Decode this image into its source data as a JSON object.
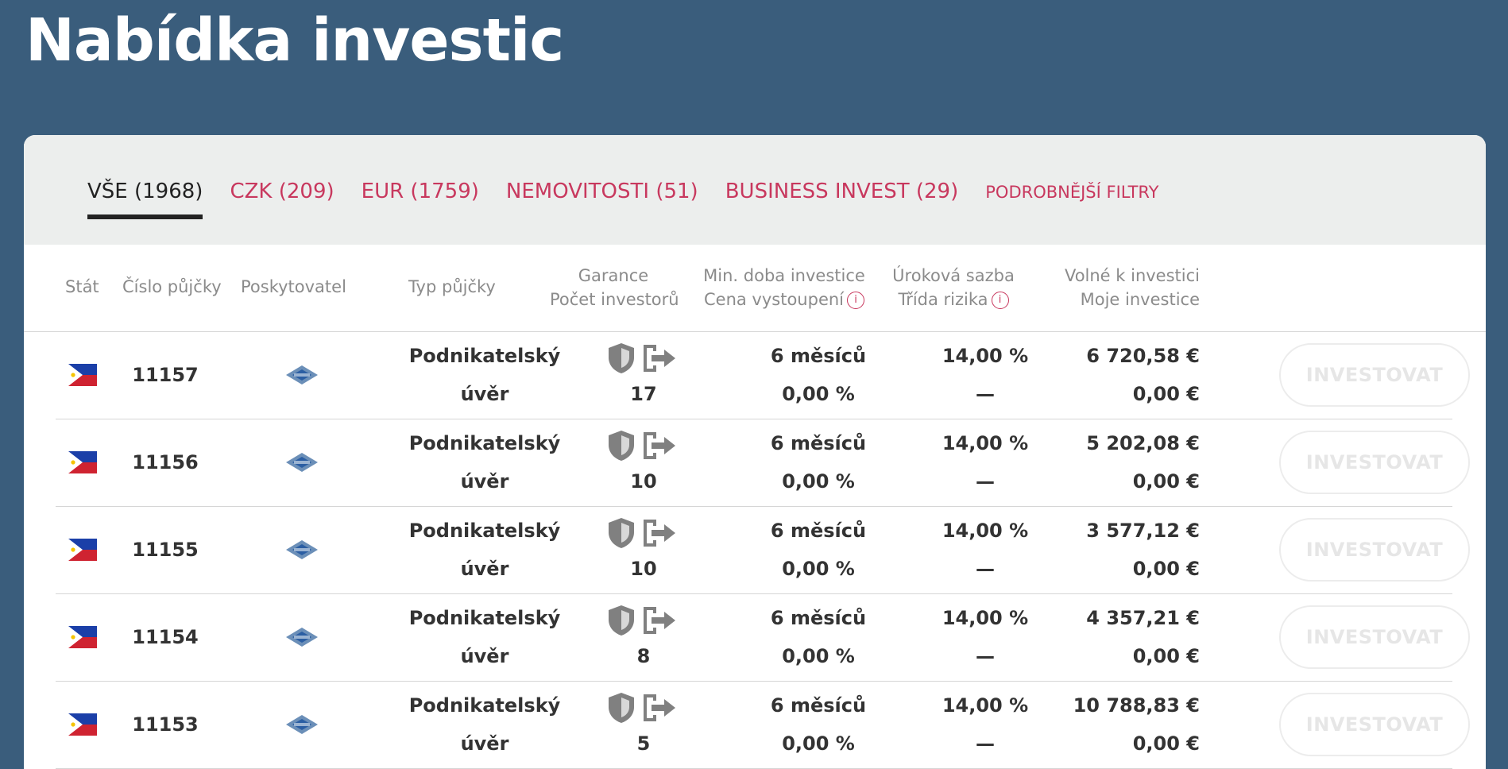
{
  "page_title": "Nabídka investic",
  "tabs": [
    {
      "label": "VŠE (1968)",
      "active": true
    },
    {
      "label": "CZK (209)",
      "active": false
    },
    {
      "label": "EUR (1759)",
      "active": false
    },
    {
      "label": "NEMOVITOSTI (51)",
      "active": false
    },
    {
      "label": "BUSINESS INVEST (29)",
      "active": false
    },
    {
      "label": "PODROBNĚJŠÍ FILTRY",
      "active": false
    }
  ],
  "columns": {
    "country": "Stát",
    "loan_number": "Číslo půjčky",
    "provider": "Poskytovatel",
    "loan_type": "Typ půjčky",
    "guarantee": "Garance",
    "investors": "Počet investorů",
    "min_period": "Min. doba investice",
    "exit_price": "Cena vystoupení",
    "interest_rate": "Úroková sazba",
    "risk_class": "Třída rizika",
    "available": "Volné k investici",
    "my_investment": "Moje investice",
    "info_glyph": "i"
  },
  "invest_label": "INVESTOVAT",
  "rows": [
    {
      "country_flag": "philippines-flag-icon",
      "loan_number": "11157",
      "type_line1": "Podnikatelský",
      "type_line2": "úvěr",
      "investors": "17",
      "min_period": "6 měsíců",
      "exit_price": "0,00 %",
      "rate": "14,00 %",
      "risk": "—",
      "available": "6 720,58 €",
      "mine": "0,00 €"
    },
    {
      "country_flag": "philippines-flag-icon",
      "loan_number": "11156",
      "type_line1": "Podnikatelský",
      "type_line2": "úvěr",
      "investors": "10",
      "min_period": "6 měsíců",
      "exit_price": "0,00 %",
      "rate": "14,00 %",
      "risk": "—",
      "available": "5 202,08 €",
      "mine": "0,00 €"
    },
    {
      "country_flag": "philippines-flag-icon",
      "loan_number": "11155",
      "type_line1": "Podnikatelský",
      "type_line2": "úvěr",
      "investors": "10",
      "min_period": "6 měsíců",
      "exit_price": "0,00 %",
      "rate": "14,00 %",
      "risk": "—",
      "available": "3 577,12 €",
      "mine": "0,00 €"
    },
    {
      "country_flag": "philippines-flag-icon",
      "loan_number": "11154",
      "type_line1": "Podnikatelský",
      "type_line2": "úvěr",
      "investors": "8",
      "min_period": "6 měsíců",
      "exit_price": "0,00 %",
      "rate": "14,00 %",
      "risk": "—",
      "available": "4 357,21 €",
      "mine": "0,00 €"
    },
    {
      "country_flag": "philippines-flag-icon",
      "loan_number": "11153",
      "type_line1": "Podnikatelský",
      "type_line2": "úvěr",
      "investors": "5",
      "min_period": "6 měsíců",
      "exit_price": "0,00 %",
      "rate": "14,00 %",
      "risk": "—",
      "available": "10 788,83 €",
      "mine": "0,00 €"
    }
  ],
  "colors": {
    "background": "#3a5d7c",
    "accent": "#c8385e",
    "tabbar": "#eceeed"
  }
}
